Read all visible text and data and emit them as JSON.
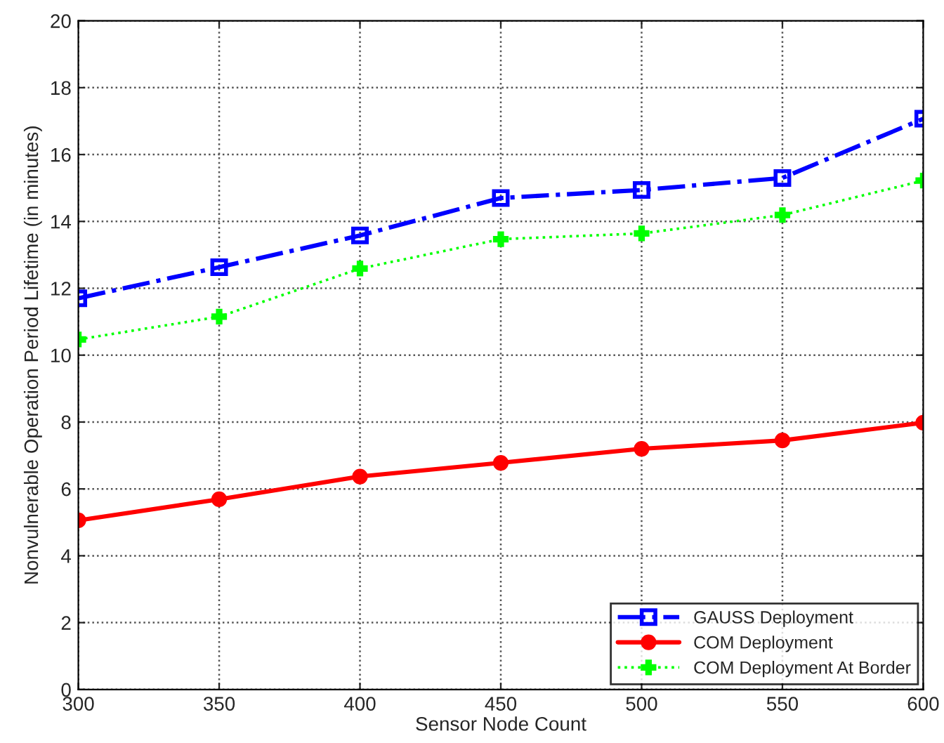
{
  "chart_data": {
    "type": "line",
    "xlabel": "Sensor Node Count",
    "ylabel": "Nonvulnerable Operation Period Lifetime (in minutes)",
    "x": [
      300,
      350,
      400,
      450,
      500,
      550,
      600
    ],
    "series": [
      {
        "name": "GAUSS Deployment",
        "color": "#0000ff",
        "marker": "square",
        "line_style": "dashdot",
        "values": [
          11.7,
          12.63,
          13.58,
          14.7,
          14.94,
          15.3,
          17.07
        ]
      },
      {
        "name": "COM Deployment",
        "color": "#ff0000",
        "marker": "circle",
        "line_style": "solid",
        "values": [
          5.06,
          5.69,
          6.37,
          6.78,
          7.2,
          7.45,
          7.98
        ]
      },
      {
        "name": "COM Deployment At Border",
        "color": "#00ff00",
        "marker": "cross",
        "line_style": "dotted",
        "values": [
          10.47,
          11.15,
          12.59,
          13.47,
          13.64,
          14.19,
          15.22
        ]
      }
    ],
    "xlim": [
      300,
      600
    ],
    "xticks": [
      300,
      350,
      400,
      450,
      500,
      550,
      600
    ],
    "ylim": [
      0,
      20
    ],
    "yticks": [
      0,
      2,
      4,
      6,
      8,
      10,
      12,
      14,
      16,
      18,
      20
    ],
    "grid": true,
    "legend": "bottom right"
  }
}
